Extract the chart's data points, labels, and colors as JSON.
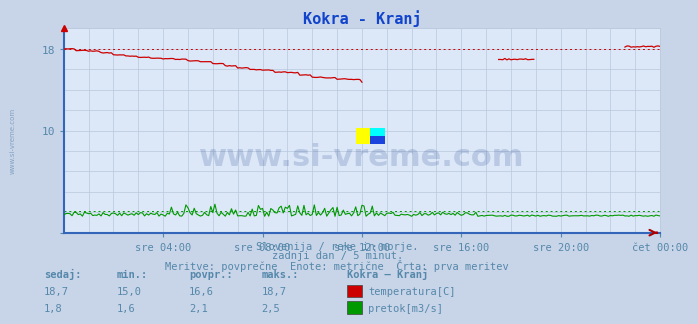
{
  "title": "Kokra - Kranj",
  "title_color": "#1144cc",
  "bg_color": "#c8d4e8",
  "plot_bg_color": "#dce8f8",
  "grid_color": "#b8c8dc",
  "xlim": [
    0,
    288
  ],
  "ylim": [
    0,
    20
  ],
  "ytick_vals": [
    0,
    10,
    18
  ],
  "ytick_labels": [
    "",
    "10",
    "18"
  ],
  "xtick_labels": [
    "sre 04:00",
    "sre 08:00",
    "sre 12:00",
    "sre 16:00",
    "sre 20:00",
    "čet 00:00"
  ],
  "xtick_positions": [
    48,
    96,
    144,
    192,
    240,
    288
  ],
  "tick_color": "#5588aa",
  "watermark": "www.si-vreme.com",
  "subtitle1": "Slovenija / reke in morje.",
  "subtitle2": "zadnji dan / 5 minut.",
  "subtitle3": "Meritve: povprečne  Enote: metrične  Črta: prva meritev",
  "subtitle_color": "#5588aa",
  "legend_title": "Kokra – Kranj",
  "legend_label1": "temperatura[C]",
  "legend_label2": "pretok[m3/s]",
  "stat_headers": [
    "sedaj:",
    "min.:",
    "povpr.:",
    "maks.:"
  ],
  "stat_temp": [
    "18,7",
    "15,0",
    "16,6",
    "18,7"
  ],
  "stat_flow": [
    "1,8",
    "1,6",
    "2,1",
    "2,5"
  ],
  "temp_color": "#cc0000",
  "flow_color": "#009900",
  "dotted_temp_y": 18.0,
  "dotted_flow_y": 2.1,
  "side_label": "www.si-vreme.com",
  "left_axis_color": "#3366bb",
  "bottom_axis_color": "#3366bb",
  "right_end_marker_color": "#aa0000"
}
